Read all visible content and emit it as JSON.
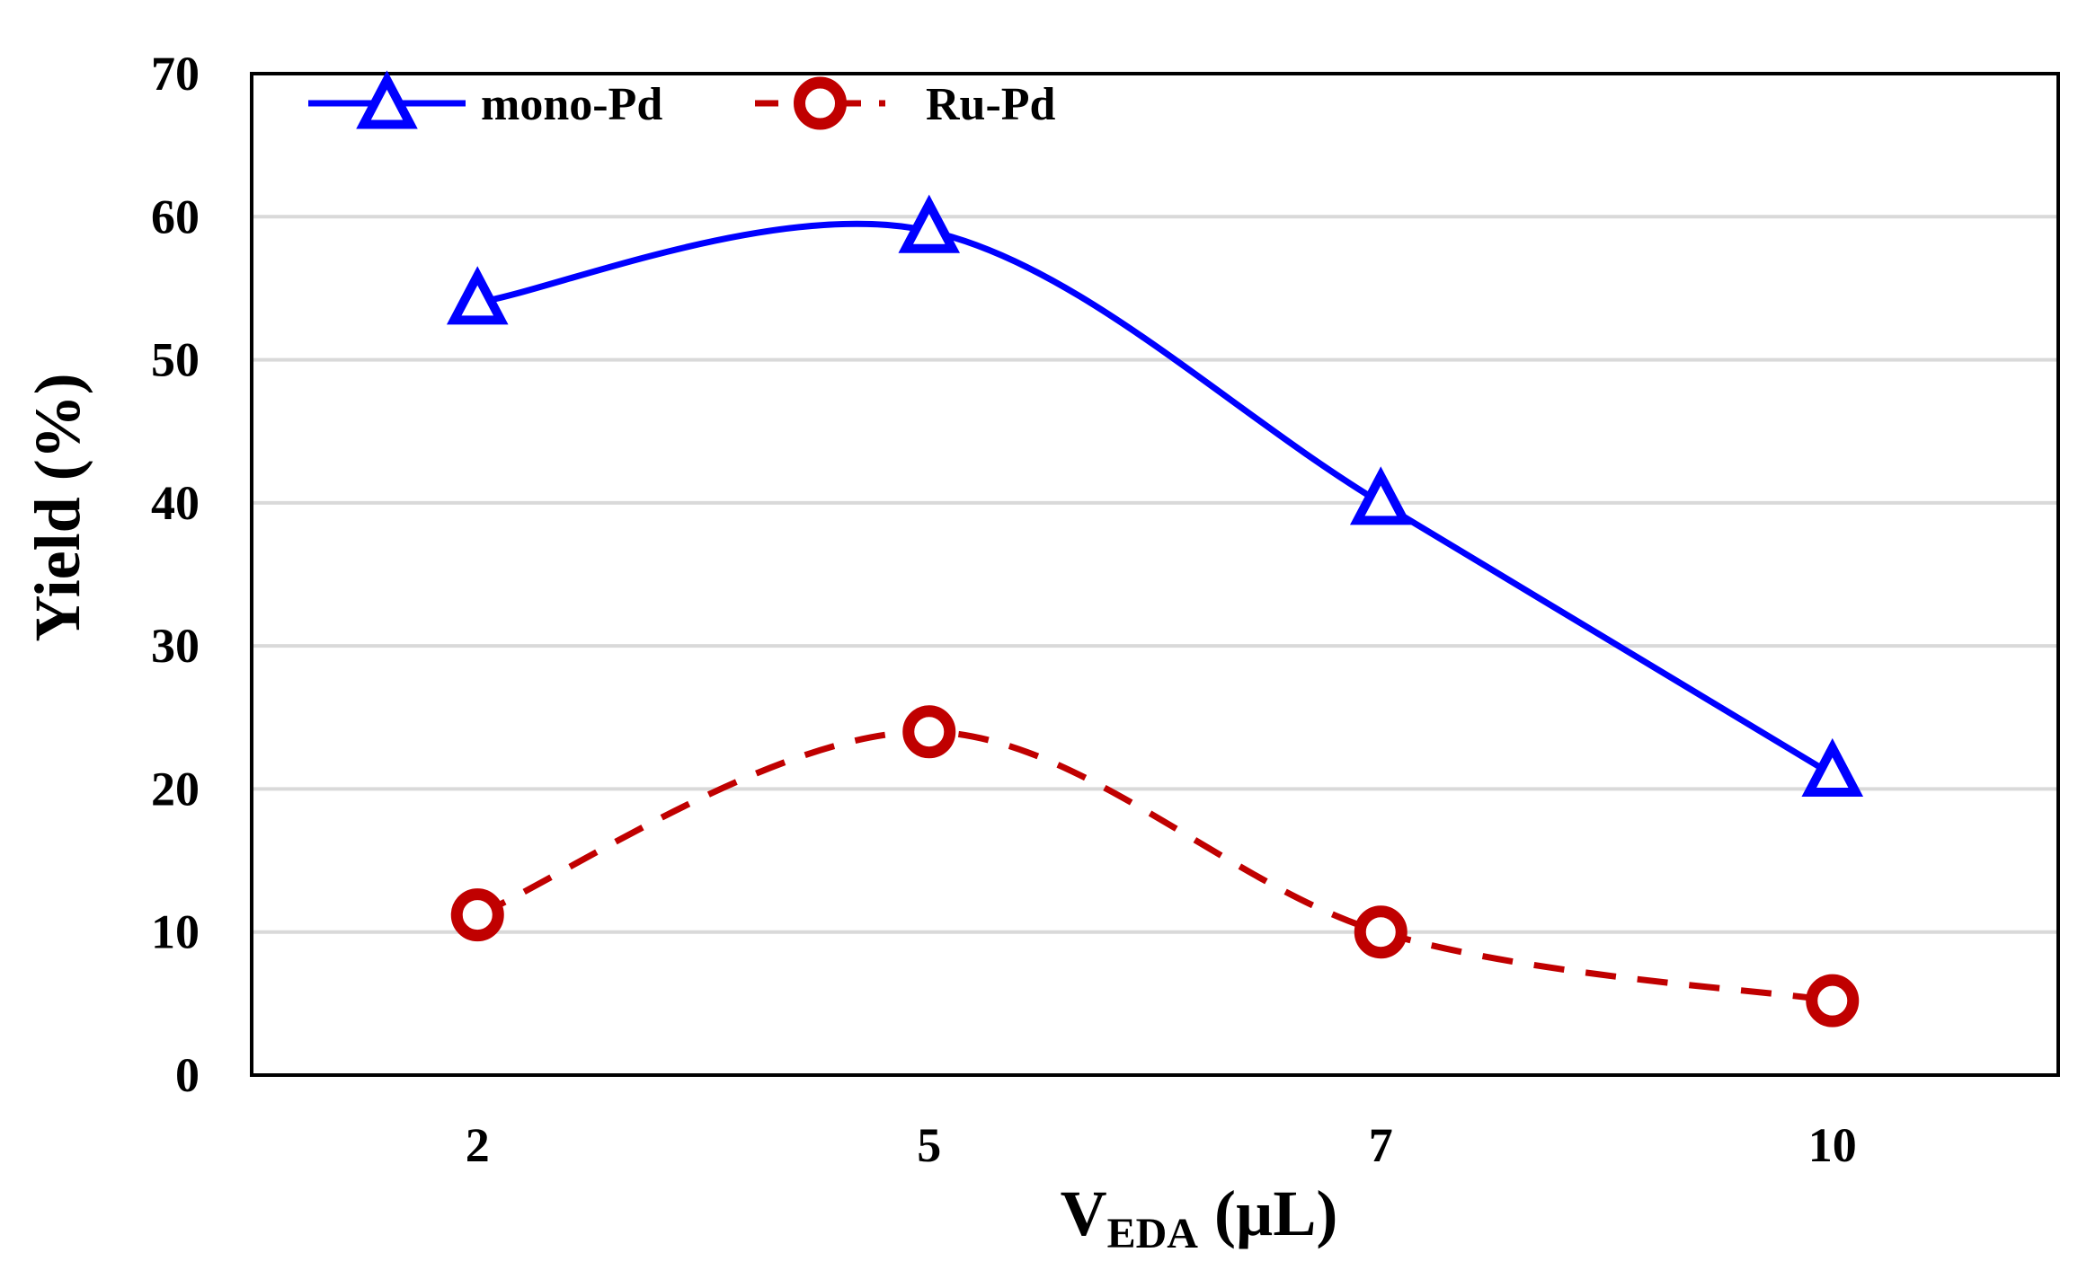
{
  "chart_data": {
    "type": "line",
    "title": "",
    "categories": [
      "2",
      "5",
      "7",
      "10"
    ],
    "xlabel": {
      "main": "V",
      "subscript": "EDA",
      "unit": " (µL)"
    },
    "ylabel": "Yield (%)",
    "ylim": [
      0,
      70
    ],
    "yticks": [
      0,
      10,
      20,
      30,
      40,
      50,
      60,
      70
    ],
    "grid": "horizontal",
    "legend_position": "top-left",
    "series": [
      {
        "name": "mono-Pd",
        "values": [
          54,
          59,
          40,
          21
        ],
        "color": "#0000ff",
        "marker": "triangle",
        "line": "solid"
      },
      {
        "name": "Ru-Pd",
        "values": [
          11.2,
          24,
          10,
          5.2
        ],
        "color": "#c00000",
        "marker": "circle",
        "line": "dashed"
      }
    ]
  }
}
